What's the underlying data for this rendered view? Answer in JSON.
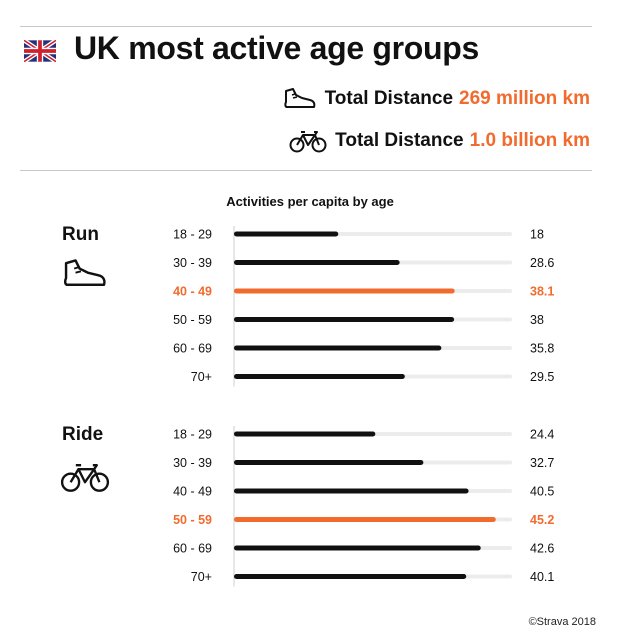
{
  "header": {
    "title": "UK most active age groups",
    "flag_icon": "uk-flag-icon",
    "stats": [
      {
        "icon": "running-shoe-icon",
        "label": "Total Distance",
        "value": "269 million km"
      },
      {
        "icon": "bicycle-icon",
        "label": "Total Distance",
        "value": "1.0 billion km"
      }
    ]
  },
  "colors": {
    "highlight": "#f26b2e",
    "bar": "#111111",
    "track": "#ececec"
  },
  "footer": {
    "copyright": "©Strava 2018"
  },
  "chart_data": [
    {
      "type": "bar",
      "orientation": "horizontal",
      "title": "Activities per capita by age",
      "section": "Run",
      "section_icon": "running-shoe-icon",
      "categories": [
        "18 - 29",
        "30 - 39",
        "40 - 49",
        "50 - 59",
        "60 - 69",
        "70+"
      ],
      "values": [
        18,
        28.6,
        38.1,
        38,
        35.8,
        29.5
      ],
      "value_labels": [
        "18",
        "28.6",
        "38.1",
        "38",
        "35.8",
        "29.5"
      ],
      "highlight_index": 2,
      "xlim": [
        0,
        48
      ]
    },
    {
      "type": "bar",
      "orientation": "horizontal",
      "title": "Activities per capita by age",
      "section": "Ride",
      "section_icon": "bicycle-icon",
      "categories": [
        "18 - 29",
        "30 - 39",
        "40 - 49",
        "50 - 59",
        "60 - 69",
        "70+"
      ],
      "values": [
        24.4,
        32.7,
        40.5,
        45.2,
        42.6,
        40.1
      ],
      "value_labels": [
        "24.4",
        "32.7",
        "40.5",
        "45.2",
        "42.6",
        "40.1"
      ],
      "highlight_index": 3,
      "xlim": [
        0,
        48
      ]
    }
  ]
}
